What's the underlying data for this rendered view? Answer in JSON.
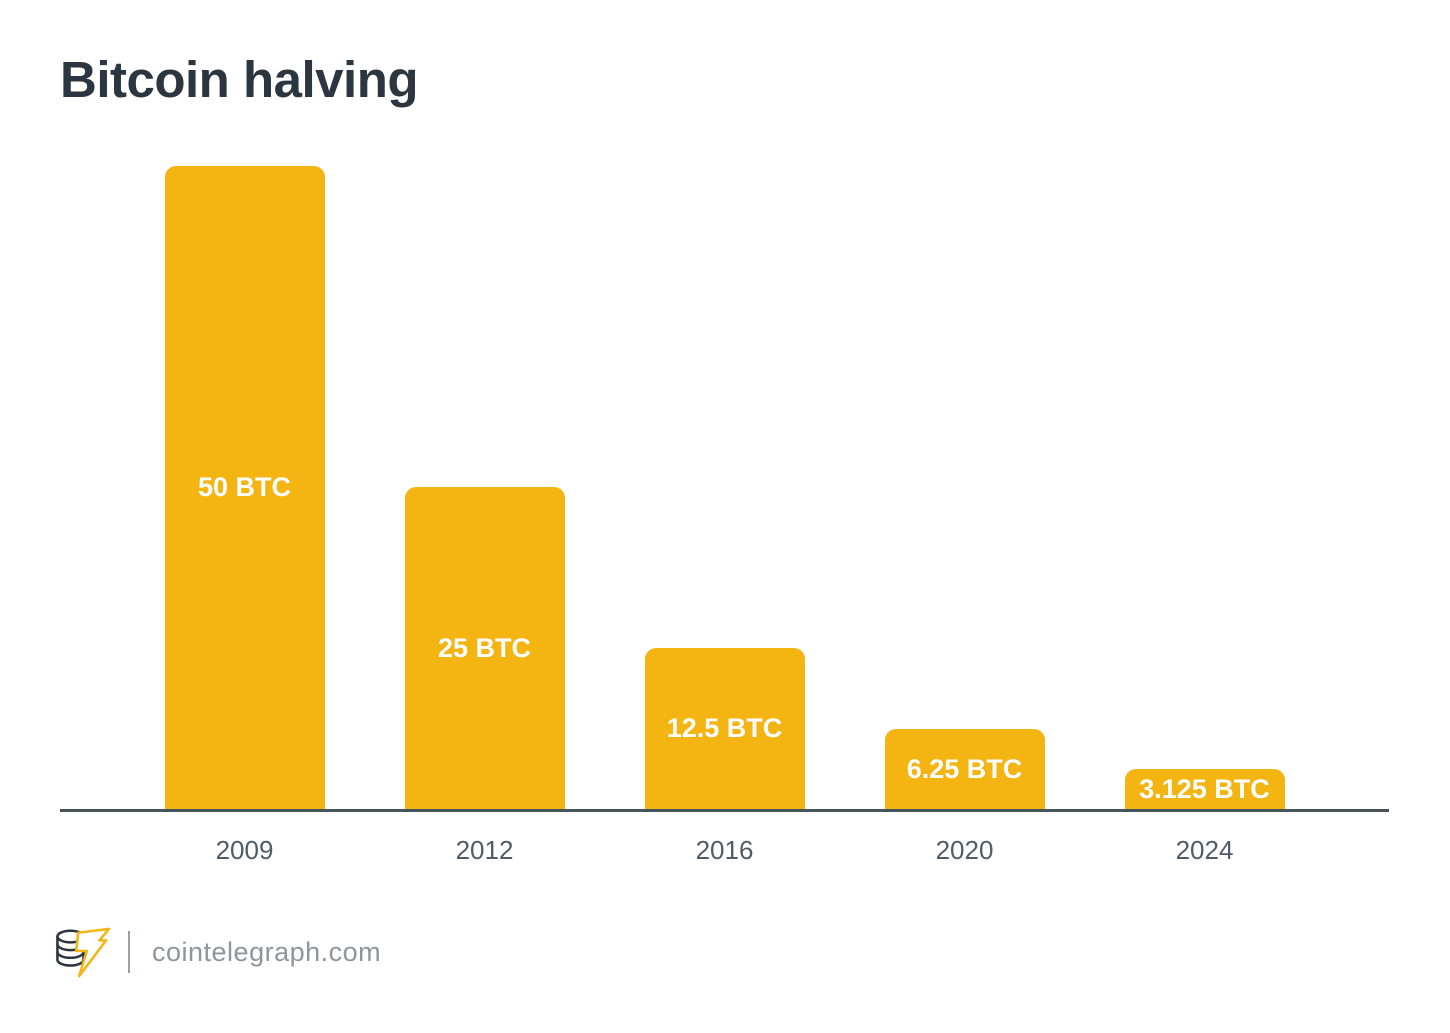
{
  "header": {
    "title": "Bitcoin halving"
  },
  "chart_data": {
    "type": "bar",
    "title": "Bitcoin halving",
    "categories": [
      "2009",
      "2012",
      "2016",
      "2020",
      "2024"
    ],
    "values": [
      50,
      25,
      12.5,
      6.25,
      3.125
    ],
    "bar_labels": [
      "50 BTC",
      "25 BTC",
      "12.5 BTC",
      "6.25 BTC",
      "3.125 BTC"
    ],
    "unit": "BTC",
    "xlabel": "",
    "ylabel": "",
    "ylim": [
      0,
      50
    ],
    "grid": false,
    "legend": false,
    "bar_color": "#F4B513",
    "bar_label_color": "#FFFFFF",
    "axis_line_color": "#46545E",
    "tick_label_color": "#4E5D6A"
  },
  "footer": {
    "logo": "cointelegraph-coins-lightning-logo",
    "logo_coin_color": "#2B3640",
    "logo_bolt_color": "#F4B513",
    "site_label": "cointelegraph.com"
  }
}
